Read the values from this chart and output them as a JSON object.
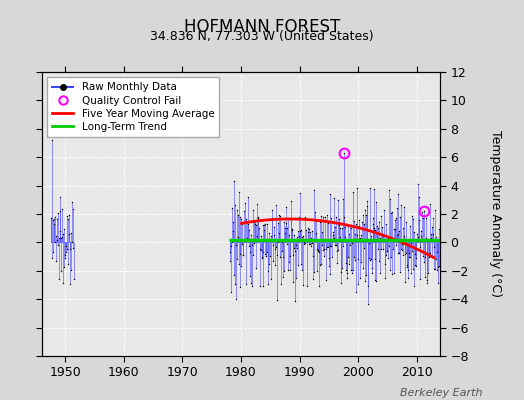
{
  "title": "HOFMANN FOREST",
  "subtitle": "34.836 N, 77.303 W (United States)",
  "ylabel": "Temperature Anomaly (°C)",
  "credit": "Berkeley Earth",
  "ylim": [
    -8,
    12
  ],
  "yticks": [
    -8,
    -6,
    -4,
    -2,
    0,
    2,
    4,
    6,
    8,
    10,
    12
  ],
  "xlim": [
    1946,
    2014
  ],
  "xticks": [
    1950,
    1960,
    1970,
    1980,
    1990,
    2000,
    2010
  ],
  "bg_color": "#d8d8d8",
  "plot_bg_color": "#e8e8e8",
  "seed": 137,
  "years_start": 1947.5,
  "years_end": 2013.9,
  "early_end": 1951.5,
  "main_start": 1978.0,
  "qc1_year": 1997.5,
  "qc1_val": 6.3,
  "qc2_year": 2011.3,
  "qc2_val": 2.2
}
